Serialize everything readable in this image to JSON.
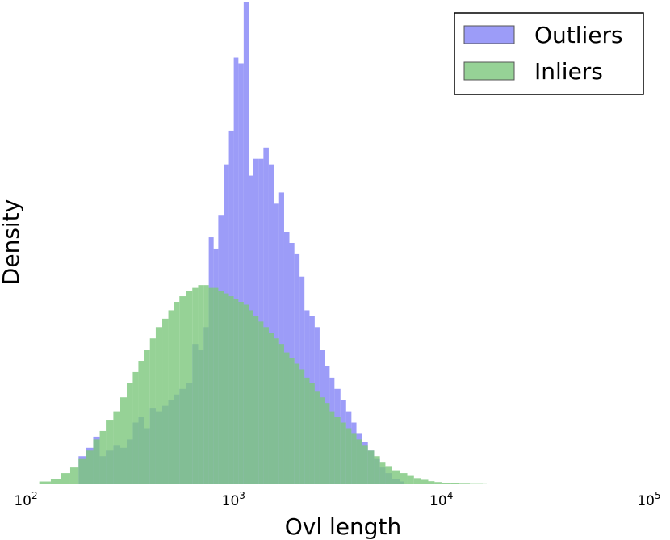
{
  "chart_data": {
    "type": "histogram",
    "xlabel": "Ovl length",
    "ylabel": "Density",
    "xscale": "log",
    "xlim": [
      100,
      100000
    ],
    "y_ticks_shown": false,
    "grid": false,
    "legend_position": "top-right",
    "xticks": [
      {
        "base": "10",
        "exp": "2",
        "value": 100
      },
      {
        "base": "10",
        "exp": "3",
        "value": 1000
      },
      {
        "base": "10",
        "exp": "4",
        "value": 10000
      },
      {
        "base": "10",
        "exp": "5",
        "value": 100000
      }
    ],
    "series": [
      {
        "name": "Outliers",
        "color": "#7b7bf6",
        "opacity": 0.75,
        "x": [
          170,
          185,
          200,
          215,
          230,
          250,
          270,
          290,
          310,
          330,
          350,
          375,
          400,
          430,
          460,
          490,
          520,
          560,
          600,
          640,
          680,
          720,
          760,
          800,
          850,
          900,
          950,
          1000,
          1060,
          1120,
          1180,
          1250,
          1320,
          1400,
          1480,
          1570,
          1660,
          1760,
          1860,
          1970,
          2080,
          2200,
          2330,
          2460,
          2600,
          2750,
          2900,
          3100,
          3300,
          3500,
          3700,
          3950,
          4200,
          4500,
          4800,
          5100,
          5500,
          6000
        ],
        "y": [
          0.1,
          0.13,
          0.17,
          0.1,
          0.12,
          0.14,
          0.13,
          0.16,
          0.22,
          0.24,
          0.2,
          0.27,
          0.26,
          0.28,
          0.3,
          0.32,
          0.34,
          0.36,
          0.5,
          0.48,
          0.56,
          0.88,
          0.84,
          0.96,
          1.14,
          1.26,
          1.52,
          1.5,
          1.72,
          1.1,
          1.16,
          1.16,
          1.2,
          1.14,
          1.0,
          1.04,
          0.9,
          0.86,
          0.82,
          0.74,
          0.62,
          0.6,
          0.56,
          0.48,
          0.42,
          0.38,
          0.34,
          0.3,
          0.26,
          0.22,
          0.18,
          0.15,
          0.12,
          0.09,
          0.06,
          0.04,
          0.02,
          0.01
        ]
      },
      {
        "name": "Inliers",
        "color": "#7cc77c",
        "opacity": 0.8,
        "x": [
          110,
          125,
          140,
          155,
          170,
          185,
          200,
          215,
          230,
          250,
          270,
          290,
          310,
          330,
          350,
          375,
          400,
          430,
          460,
          490,
          520,
          560,
          600,
          640,
          680,
          720,
          760,
          800,
          850,
          900,
          950,
          1000,
          1060,
          1120,
          1180,
          1250,
          1320,
          1400,
          1480,
          1570,
          1660,
          1760,
          1860,
          1970,
          2080,
          2200,
          2330,
          2460,
          2600,
          2750,
          2900,
          3100,
          3300,
          3500,
          3700,
          3950,
          4200,
          4500,
          4800,
          5100,
          5500,
          6000,
          6500,
          7000,
          7600,
          8200,
          8800,
          9500,
          10500,
          11500,
          13000,
          15000
        ],
        "y": [
          0.01,
          0.02,
          0.04,
          0.06,
          0.09,
          0.12,
          0.16,
          0.19,
          0.23,
          0.26,
          0.31,
          0.36,
          0.4,
          0.44,
          0.48,
          0.52,
          0.56,
          0.59,
          0.62,
          0.65,
          0.67,
          0.69,
          0.7,
          0.71,
          0.71,
          0.7,
          0.7,
          0.69,
          0.68,
          0.67,
          0.66,
          0.65,
          0.64,
          0.62,
          0.6,
          0.58,
          0.56,
          0.54,
          0.52,
          0.5,
          0.47,
          0.45,
          0.43,
          0.41,
          0.38,
          0.36,
          0.33,
          0.31,
          0.29,
          0.26,
          0.24,
          0.22,
          0.2,
          0.18,
          0.16,
          0.14,
          0.12,
          0.1,
          0.08,
          0.065,
          0.05,
          0.04,
          0.03,
          0.022,
          0.016,
          0.011,
          0.008,
          0.005,
          0.003,
          0.002,
          0.001,
          0.0005
        ]
      }
    ]
  }
}
